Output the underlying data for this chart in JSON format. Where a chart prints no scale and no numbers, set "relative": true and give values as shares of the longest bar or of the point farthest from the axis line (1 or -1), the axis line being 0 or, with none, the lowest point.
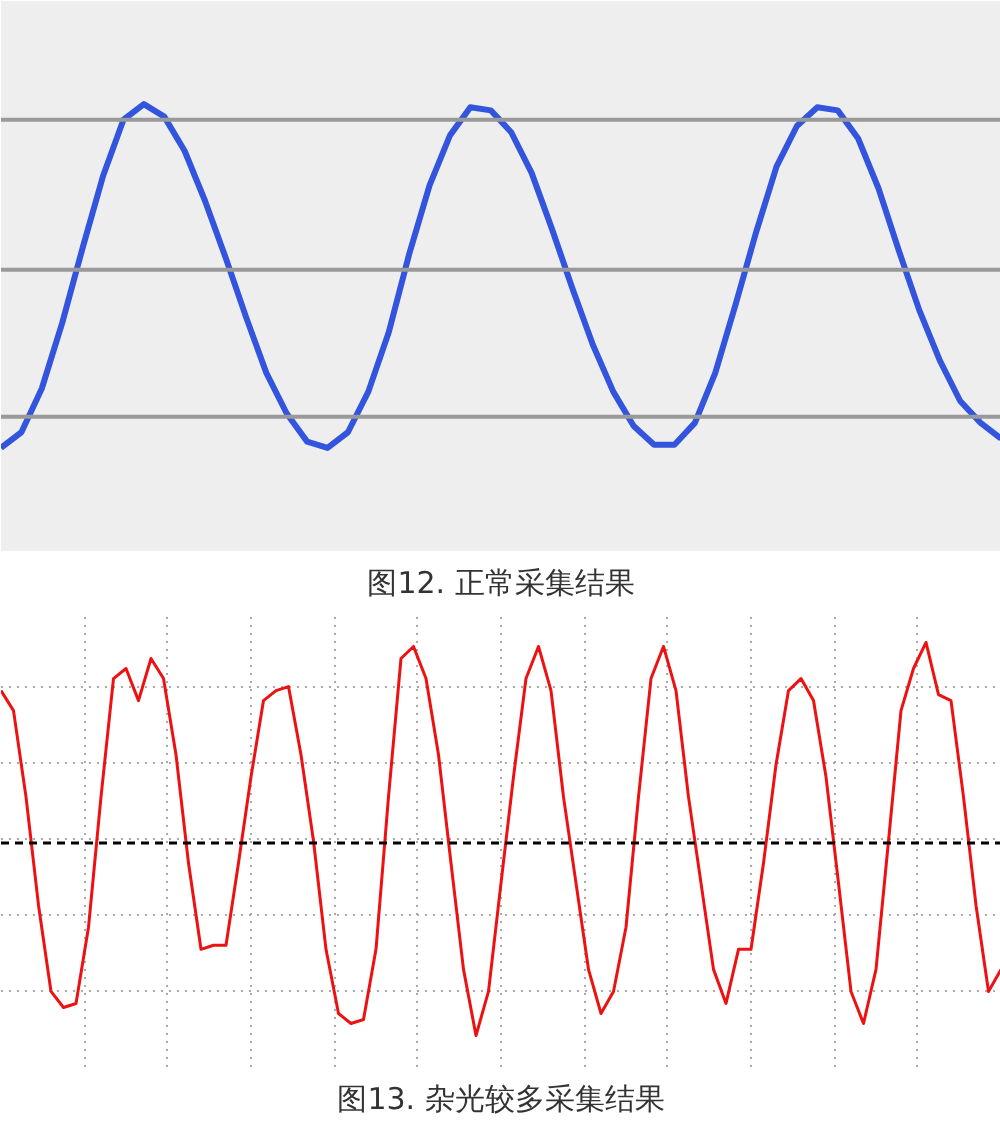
{
  "chart_data": [
    {
      "type": "line",
      "title": "图12. 正常采集结果",
      "relative": true,
      "categories": [
        null,
        null,
        null,
        null,
        null,
        null,
        null,
        null,
        null,
        null,
        null,
        null,
        null,
        null,
        null,
        null,
        null,
        null,
        null,
        null,
        null,
        null,
        null,
        null,
        null,
        null,
        null,
        null,
        null,
        null,
        null,
        null,
        null,
        null,
        null,
        null,
        null,
        null,
        null,
        null,
        null,
        null,
        null,
        null,
        null,
        null,
        null,
        null,
        null,
        null
      ],
      "series": [
        {
          "color": "#3355dd",
          "values": [
            -0.1,
            -0.05,
            0.09,
            0.3,
            0.54,
            0.77,
            0.95,
            1.0,
            0.96,
            0.85,
            0.69,
            0.51,
            0.32,
            0.14,
            0.01,
            -0.08,
            -0.1,
            -0.05,
            0.08,
            0.27,
            0.52,
            0.74,
            0.9,
            0.99,
            0.98,
            0.91,
            0.78,
            0.6,
            0.41,
            0.23,
            0.08,
            -0.03,
            -0.09,
            -0.09,
            -0.02,
            0.14,
            0.36,
            0.59,
            0.8,
            0.93,
            0.99,
            0.98,
            0.89,
            0.73,
            0.53,
            0.34,
            0.18,
            0.05,
            -0.02,
            -0.07
          ]
        }
      ],
      "ref_lines": [
        {
          "axis": "y",
          "value": 0,
          "color": "#999999",
          "line_style": "solid"
        },
        {
          "axis": "y",
          "value": 0.47,
          "color": "#999999",
          "line_style": "solid"
        },
        {
          "axis": "y",
          "value": 0.95,
          "color": "#999999",
          "line_style": "solid"
        }
      ]
    },
    {
      "type": "line",
      "title": "图13. 杂光较多采集结果",
      "relative": true,
      "grid": true,
      "categories": [
        null,
        null,
        null,
        null,
        null,
        null,
        null,
        null,
        null,
        null,
        null,
        null,
        null,
        null,
        null,
        null,
        null,
        null,
        null,
        null,
        null,
        null,
        null,
        null,
        null,
        null,
        null,
        null,
        null,
        null,
        null,
        null,
        null,
        null,
        null,
        null,
        null,
        null,
        null,
        null,
        null,
        null,
        null,
        null,
        null,
        null,
        null,
        null,
        null,
        null,
        null,
        null,
        null,
        null,
        null,
        null,
        null,
        null,
        null,
        null,
        null,
        null,
        null,
        null,
        null,
        null,
        null,
        null,
        null,
        null,
        null,
        null,
        null,
        null,
        null,
        null,
        null,
        null,
        null,
        null,
        null
      ],
      "series": [
        {
          "color": "#ee1111",
          "values": [
            0.76,
            0.66,
            0.23,
            -0.31,
            -0.74,
            -0.82,
            -0.8,
            -0.42,
            0.23,
            0.82,
            0.87,
            0.71,
            0.92,
            0.82,
            0.44,
            -0.1,
            -0.53,
            -0.51,
            -0.51,
            -0.1,
            0.33,
            0.71,
            0.76,
            0.78,
            0.44,
            0.01,
            -0.53,
            -0.85,
            -0.9,
            -0.88,
            -0.53,
            0.23,
            0.92,
            0.98,
            0.82,
            0.44,
            -0.1,
            -0.63,
            -0.96,
            -0.74,
            -0.2,
            0.33,
            0.82,
            0.98,
            0.76,
            0.23,
            -0.2,
            -0.63,
            -0.85,
            -0.74,
            -0.42,
            0.23,
            0.82,
            0.98,
            0.76,
            0.23,
            -0.2,
            -0.63,
            -0.8,
            -0.53,
            -0.53,
            -0.1,
            0.39,
            0.76,
            0.82,
            0.71,
            0.33,
            -0.2,
            -0.74,
            -0.9,
            -0.63,
            0.01,
            0.66,
            0.87,
            1.0,
            0.74,
            0.71,
            0.23,
            -0.31,
            -0.74,
            -0.63
          ]
        }
      ],
      "ref_lines": [
        {
          "axis": "y",
          "value": 0,
          "color": "#000000",
          "line_style": "dashed"
        }
      ]
    }
  ]
}
